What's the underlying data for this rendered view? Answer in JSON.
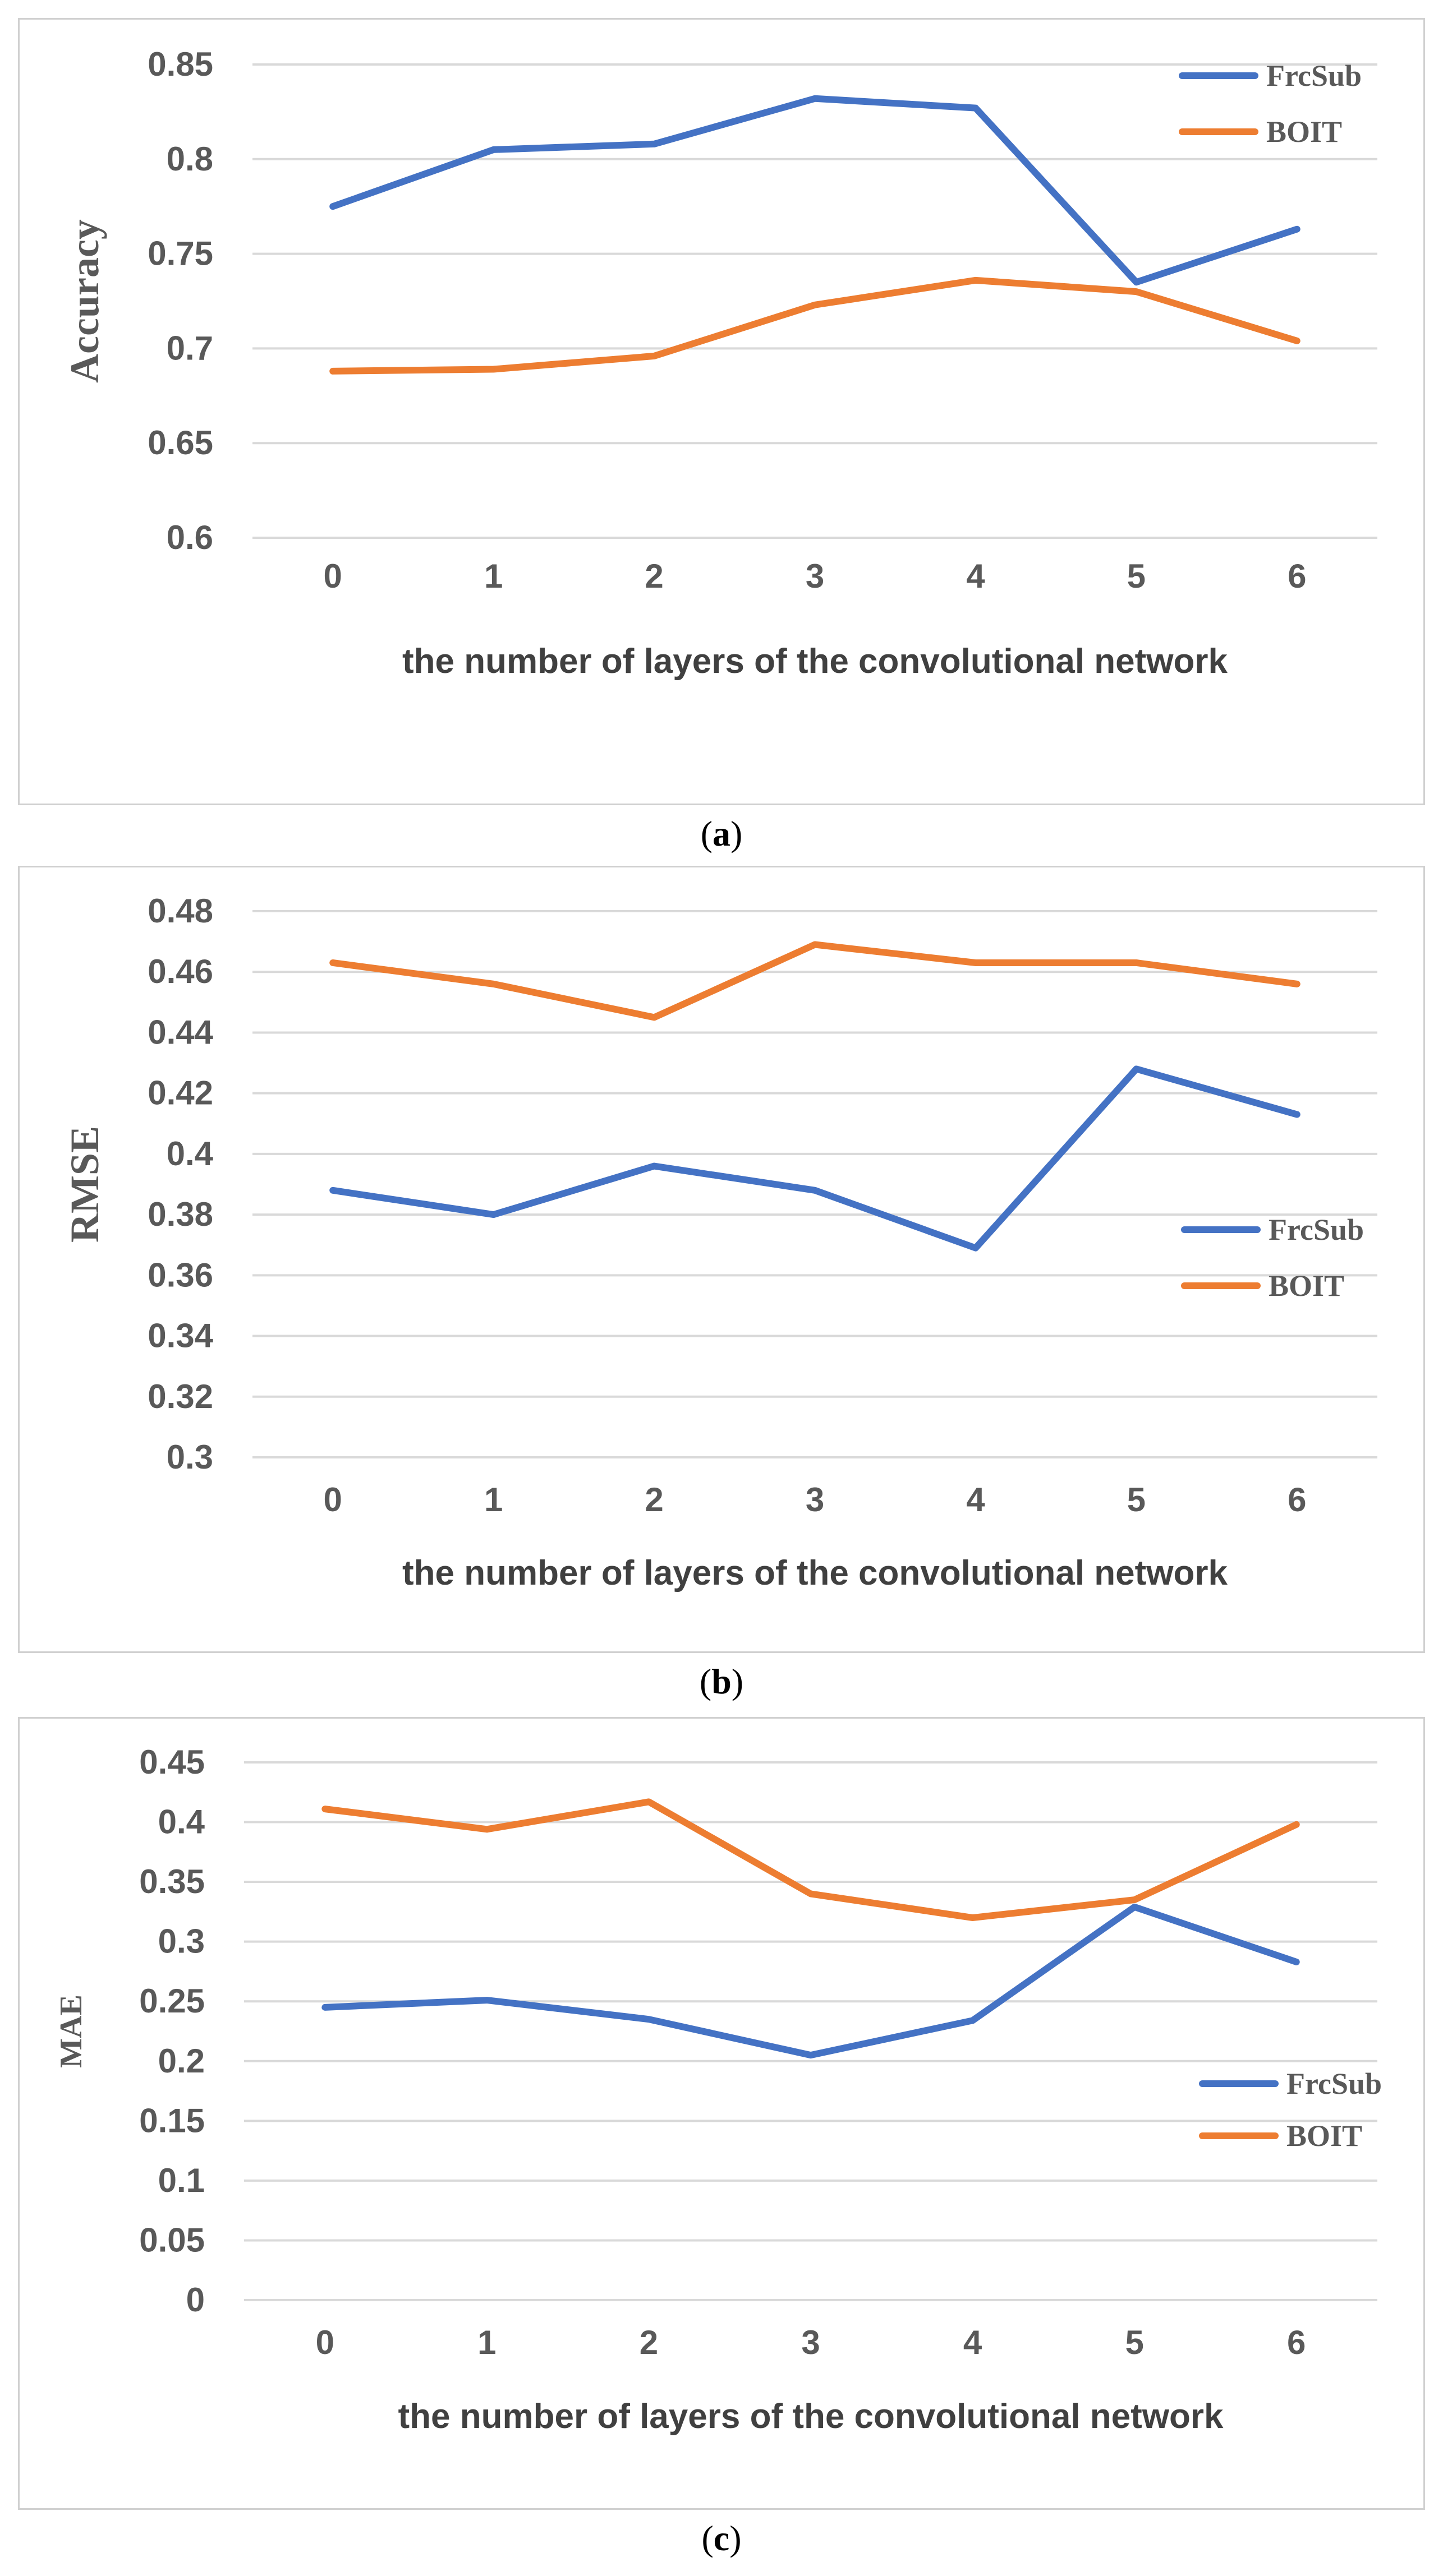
{
  "colors": {
    "FrcSub": "#4472C4",
    "BOIT": "#ED7D31"
  },
  "chart_data": [
    {
      "type": "line",
      "caption_letter": "a",
      "ylabel": "Accuracy",
      "xlabel": "the number of layers of the convolutional network",
      "categories": [
        "0",
        "1",
        "2",
        "3",
        "4",
        "5",
        "6"
      ],
      "ylim": [
        0.6,
        0.85
      ],
      "yticks": [
        "0.6",
        "0.65",
        "0.7",
        "0.75",
        "0.8",
        "0.85"
      ],
      "legend": "top-right",
      "series": [
        {
          "name": "FrcSub",
          "values": [
            0.775,
            0.805,
            0.808,
            0.832,
            0.827,
            0.735,
            0.763
          ]
        },
        {
          "name": "BOIT",
          "values": [
            0.688,
            0.689,
            0.696,
            0.723,
            0.736,
            0.73,
            0.704
          ]
        }
      ]
    },
    {
      "type": "line",
      "caption_letter": "b",
      "ylabel": "RMSE",
      "xlabel": "the number of layers of the convolutional network",
      "categories": [
        "0",
        "1",
        "2",
        "3",
        "4",
        "5",
        "6"
      ],
      "ylim": [
        0.3,
        0.48
      ],
      "yticks": [
        "0.3",
        "0.32",
        "0.34",
        "0.36",
        "0.38",
        "0.4",
        "0.42",
        "0.44",
        "0.46",
        "0.48"
      ],
      "legend": "right",
      "series": [
        {
          "name": "FrcSub",
          "values": [
            0.388,
            0.38,
            0.396,
            0.388,
            0.369,
            0.428,
            0.413
          ]
        },
        {
          "name": "BOIT",
          "values": [
            0.463,
            0.456,
            0.445,
            0.469,
            0.463,
            0.463,
            0.456
          ]
        }
      ]
    },
    {
      "type": "line",
      "caption_letter": "c",
      "ylabel": "MAE",
      "xlabel": "the number of layers of the convolutional network",
      "categories": [
        "0",
        "1",
        "2",
        "3",
        "4",
        "5",
        "6"
      ],
      "ylim": [
        0,
        0.45
      ],
      "yticks": [
        "0",
        "0.05",
        "0.1",
        "0.15",
        "0.2",
        "0.25",
        "0.3",
        "0.35",
        "0.4",
        "0.45"
      ],
      "legend": "right",
      "series": [
        {
          "name": "FrcSub",
          "values": [
            0.245,
            0.251,
            0.235,
            0.205,
            0.234,
            0.329,
            0.283
          ]
        },
        {
          "name": "BOIT",
          "values": [
            0.411,
            0.394,
            0.417,
            0.34,
            0.32,
            0.335,
            0.398
          ]
        }
      ]
    }
  ]
}
